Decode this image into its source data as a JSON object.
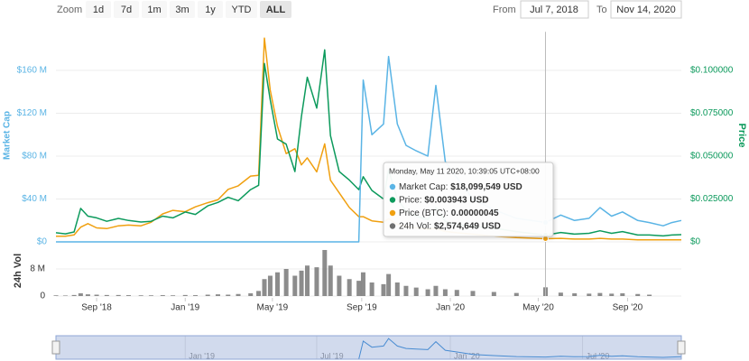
{
  "range_selector": {
    "zoom_label": "Zoom",
    "buttons": [
      "1d",
      "7d",
      "1m",
      "3m",
      "1y",
      "YTD",
      "ALL"
    ],
    "active_button": 6,
    "from_label": "From",
    "from": "Jul 7, 2018",
    "to_label": "To",
    "to": "Nov 14, 2020"
  },
  "chart_data": {
    "type": "line",
    "x": [
      "2018-07-07",
      "2018-07-20",
      "2018-08-01",
      "2018-08-10",
      "2018-08-20",
      "2018-09-01",
      "2018-09-15",
      "2018-10-01",
      "2018-10-15",
      "2018-11-01",
      "2018-11-15",
      "2018-12-01",
      "2018-12-15",
      "2019-01-01",
      "2019-01-15",
      "2019-02-01",
      "2019-02-15",
      "2019-03-01",
      "2019-03-15",
      "2019-04-01",
      "2019-04-12",
      "2019-04-20",
      "2019-04-28",
      "2019-05-08",
      "2019-05-20",
      "2019-06-01",
      "2019-06-10",
      "2019-06-18",
      "2019-07-01",
      "2019-07-12",
      "2019-07-20",
      "2019-08-01",
      "2019-08-15",
      "2019-08-28",
      "2019-09-03",
      "2019-09-15",
      "2019-10-01",
      "2019-10-08",
      "2019-10-20",
      "2019-11-01",
      "2019-11-15",
      "2019-12-01",
      "2019-12-12",
      "2019-12-25",
      "2020-01-10",
      "2020-02-01",
      "2020-03-01",
      "2020-04-01",
      "2020-05-11",
      "2020-06-01",
      "2020-06-20",
      "2020-07-10",
      "2020-07-25",
      "2020-08-10",
      "2020-08-25",
      "2020-09-15",
      "2020-10-01",
      "2020-10-20",
      "2020-11-01",
      "2020-11-14"
    ],
    "series": [
      {
        "color": "#5ab4e5",
        "axis": "y",
        "type": "line",
        "values": [
          0,
          0,
          0,
          0,
          0,
          0,
          0,
          0,
          0,
          0,
          0,
          0,
          0,
          0,
          0,
          0,
          0,
          0,
          0,
          0,
          0,
          0,
          0,
          0,
          0,
          0,
          0,
          0,
          0,
          0,
          0,
          0,
          0,
          0,
          151000000,
          100000000,
          110000000,
          173000000,
          110000000,
          90000000,
          85000000,
          80000000,
          146000000,
          75000000,
          60000000,
          40000000,
          30000000,
          22000000,
          18099549,
          25000000,
          20000000,
          22000000,
          32000000,
          24000000,
          28000000,
          20000000,
          18000000,
          15000000,
          18000000,
          20000000
        ]
      },
      {
        "color": "#0c9a5c",
        "axis": "y2",
        "type": "line",
        "values": [
          0.0053,
          0.0047,
          0.0058,
          0.0195,
          0.015,
          0.014,
          0.012,
          0.0137,
          0.0125,
          0.0116,
          0.012,
          0.015,
          0.014,
          0.0174,
          0.016,
          0.021,
          0.023,
          0.026,
          0.024,
          0.0305,
          0.033,
          0.104,
          0.083,
          0.06,
          0.057,
          0.041,
          0.073,
          0.096,
          0.078,
          0.112,
          0.062,
          0.041,
          0.036,
          0.0305,
          0.038,
          0.03,
          0.025,
          0.042,
          0.025,
          0.018,
          0.015,
          0.013,
          0.02,
          0.012,
          0.01,
          0.009,
          0.008,
          0.006,
          0.003943,
          0.0055,
          0.0045,
          0.005,
          0.0065,
          0.005,
          0.006,
          0.004,
          0.004,
          0.0035,
          0.004,
          0.0042
        ]
      },
      {
        "color": "#f0a010",
        "axis": "y3",
        "type": "line",
        "values": [
          8e-07,
          8e-07,
          1e-06,
          2.1e-06,
          2.6e-06,
          2e-06,
          1.9e-06,
          2.3e-06,
          2.4e-06,
          2.3e-06,
          2.8e-06,
          4e-06,
          4.5e-06,
          4.3e-06,
          5e-06,
          5.6e-06,
          6e-06,
          7.5e-06,
          8e-06,
          9.4e-06,
          9.5e-06,
          2.91e-05,
          2.17e-05,
          1.65e-05,
          1.26e-05,
          1.33e-05,
          1.1e-05,
          1.2e-05,
          1e-05,
          1.4e-05,
          8.8e-06,
          7e-06,
          4.9e-06,
          3.6e-06,
          3.6e-06,
          3e-06,
          2.8e-06,
          3.3e-06,
          2.5e-06,
          2.2e-06,
          2e-06,
          1.8e-06,
          1.9e-06,
          1.5e-06,
          1.3e-06,
          1.1e-06,
          8e-07,
          6e-07,
          4.5e-07,
          5e-07,
          4e-07,
          4e-07,
          5e-07,
          4e-07,
          4e-07,
          3e-07,
          3e-07,
          3e-07,
          3e-07,
          3e-07
        ]
      },
      {
        "color": "#6f6f6f",
        "axis": "vol",
        "type": "column",
        "values": [
          200000,
          150000,
          300000,
          800000,
          500000,
          400000,
          300000,
          300000,
          250000,
          200000,
          200000,
          250000,
          200000,
          300000,
          250000,
          400000,
          500000,
          400000,
          600000,
          800000,
          1500000,
          5000000,
          6000000,
          7000000,
          8000000,
          6000000,
          7500000,
          9000000,
          8500000,
          13600000,
          9000000,
          6000000,
          5000000,
          4500000,
          7000000,
          4000000,
          3500000,
          6500000,
          4000000,
          3000000,
          2500000,
          2000000,
          3000000,
          2000000,
          1800000,
          1500000,
          1200000,
          900000,
          2574649,
          1000000,
          800000,
          700000,
          900000,
          700000,
          800000,
          600000,
          400000,
          null,
          null,
          null
        ]
      }
    ],
    "xlim": [
      "2018-07-07",
      "2020-11-14"
    ],
    "xticks": [
      {
        "value": "2018-09-01",
        "label": "Sep '18"
      },
      {
        "value": "2019-01-01",
        "label": "Jan '19"
      },
      {
        "value": "2019-05-01",
        "label": "May '19"
      },
      {
        "value": "2019-09-01",
        "label": "Sep '19"
      },
      {
        "value": "2020-01-01",
        "label": "Jan '20"
      },
      {
        "value": "2020-05-01",
        "label": "May '20"
      },
      {
        "value": "2020-09-01",
        "label": "Sep '20"
      }
    ],
    "ylim": [
      0,
      196000000
    ],
    "yticks": [
      {
        "value": 0,
        "label": "$0"
      },
      {
        "value": 40000000,
        "label": "$40 M"
      },
      {
        "value": 80000000,
        "label": "$80 M"
      },
      {
        "value": 120000000,
        "label": "$120 M"
      },
      {
        "value": 160000000,
        "label": "$160 M"
      }
    ],
    "y2lim": [
      0,
      0.1225
    ],
    "y2ticks": [
      {
        "value": 0,
        "label": "$0"
      },
      {
        "value": 0.025,
        "label": "$0.025000"
      },
      {
        "value": 0.05,
        "label": "$0.050000"
      },
      {
        "value": 0.075,
        "label": "$0.075000"
      },
      {
        "value": 0.1,
        "label": "$0.100000"
      }
    ],
    "y3lim": [
      0,
      3e-05
    ],
    "vol_ylim": [
      0,
      14000000
    ],
    "vol_yticks": [
      0,
      {
        "value": 8000000,
        "label": "8 M"
      }
    ],
    "ylabel": "Market Cap",
    "y2label": "Price",
    "vol_label": "24h Vol",
    "grid": true,
    "navigator_ticks": [
      {
        "value": "2019-01-01",
        "label": "Jan '19"
      },
      {
        "value": "2019-07-01",
        "label": "Jul '19"
      },
      {
        "value": "2020-01-01",
        "label": "Jan '20"
      },
      {
        "value": "2020-07-01",
        "label": "Jul '20"
      }
    ],
    "tooltip": {
      "index": 48,
      "title": "Monday, May 11 2020, 10:39:05 UTC+08:00",
      "items": [
        {
          "label": "Market Cap:",
          "value": "$18,099,549 USD"
        },
        {
          "label": "Price:",
          "value": "$0.003943 USD"
        },
        {
          "label": "Price (BTC):",
          "value": "0.00000045"
        },
        {
          "label": "24h Vol:",
          "value": "$2,574,649 USD"
        }
      ]
    }
  }
}
